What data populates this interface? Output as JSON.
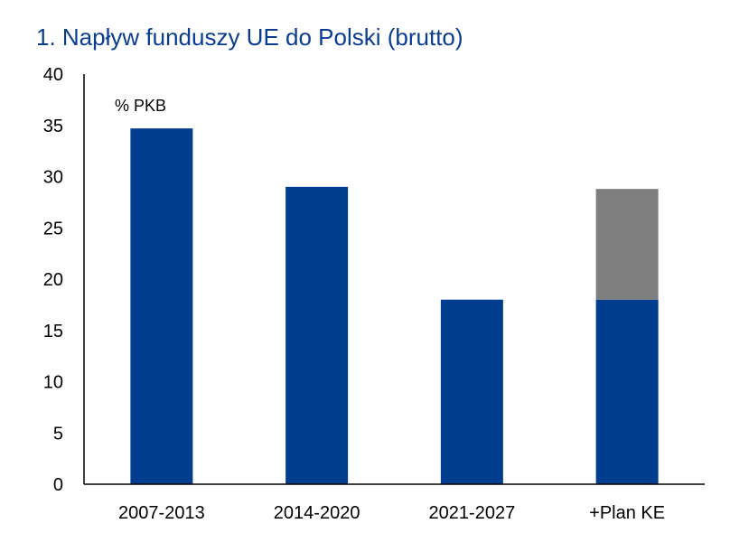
{
  "chart_data": {
    "type": "bar",
    "title": "1. Napływ funduszy UE do Polski (brutto)",
    "unit_label": "% PKB",
    "xlabel": "",
    "ylabel": "",
    "ylim": [
      0,
      40
    ],
    "yticks": [
      0,
      5,
      10,
      15,
      20,
      25,
      30,
      35,
      40
    ],
    "grid": false,
    "legend": "none",
    "categories": [
      "2007-2013",
      "2014-2020",
      "2021-2027",
      "+Plan KE"
    ],
    "series": [
      {
        "values": [
          34.7,
          29.0,
          18.0,
          18.0
        ],
        "color": "#003d8f"
      },
      {
        "values": [
          0,
          0,
          0,
          10.8
        ],
        "color": "#7f7f7f"
      }
    ]
  }
}
